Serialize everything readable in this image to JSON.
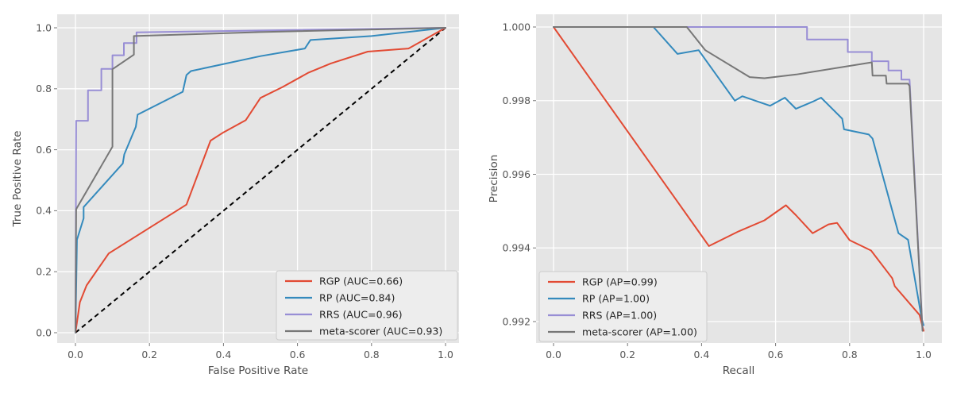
{
  "figure": {
    "background": "#ffffff"
  },
  "colors": {
    "plot_bg": "#e5e5e5",
    "grid": "#ffffff",
    "tick": "#777777",
    "tick_label": "#555555",
    "axis_label": "#4d4d4d",
    "legend_bg": "#ededed",
    "legend_border": "#cccccc",
    "legend_text": "#262626",
    "red": "#e24a33",
    "blue": "#348abd",
    "purple": "#988ed5",
    "gray": "#777777",
    "diagonal": "#000000"
  },
  "chart_data": [
    {
      "id": "roc",
      "type": "line",
      "xlabel": "False Positive Rate",
      "ylabel": "True Positive Rate",
      "xlim": [
        -0.05,
        1.05
      ],
      "ylim": [
        -0.04,
        1.04
      ],
      "xticks": [
        0.0,
        0.2,
        0.4,
        0.6,
        0.8,
        1.0
      ],
      "xtick_labels": [
        "0.0",
        "0.2",
        "0.4",
        "0.6",
        "0.8",
        "1.0"
      ],
      "yticks": [
        0.0,
        0.2,
        0.4,
        0.6,
        0.8,
        1.0
      ],
      "ytick_labels": [
        "0.0",
        "0.2",
        "0.4",
        "0.6",
        "0.8",
        "1.0"
      ],
      "grid": true,
      "legend_location": "lower right",
      "reference_diagonal": true,
      "series": [
        {
          "name": "RGP",
          "legend_label": "RGP (AUC=0.66)",
          "auc": 0.66,
          "color": "#e24a33",
          "points": [
            [
              0,
              0
            ],
            [
              0.012,
              0.1
            ],
            [
              0.03,
              0.155
            ],
            [
              0.09,
              0.26
            ],
            [
              0.3,
              0.42
            ],
            [
              0.365,
              0.63
            ],
            [
              0.4,
              0.657
            ],
            [
              0.46,
              0.697
            ],
            [
              0.5,
              0.77
            ],
            [
              0.56,
              0.806
            ],
            [
              0.63,
              0.853
            ],
            [
              0.69,
              0.883
            ],
            [
              0.79,
              0.922
            ],
            [
              0.9,
              0.932
            ],
            [
              1,
              1
            ]
          ]
        },
        {
          "name": "RP",
          "legend_label": "RP (AUC=0.84)",
          "auc": 0.84,
          "color": "#348abd",
          "points": [
            [
              0,
              0
            ],
            [
              0.004,
              0.305
            ],
            [
              0.022,
              0.375
            ],
            [
              0.022,
              0.412
            ],
            [
              0.128,
              0.555
            ],
            [
              0.132,
              0.585
            ],
            [
              0.163,
              0.675
            ],
            [
              0.168,
              0.715
            ],
            [
              0.29,
              0.79
            ],
            [
              0.3,
              0.845
            ],
            [
              0.312,
              0.858
            ],
            [
              0.5,
              0.907
            ],
            [
              0.62,
              0.932
            ],
            [
              0.635,
              0.96
            ],
            [
              0.8,
              0.973
            ],
            [
              1,
              1
            ]
          ]
        },
        {
          "name": "RRS",
          "legend_label": "RRS (AUC=0.96)",
          "auc": 0.96,
          "color": "#988ed5",
          "points": [
            [
              0,
              0
            ],
            [
              0.002,
              0.695
            ],
            [
              0.034,
              0.695
            ],
            [
              0.034,
              0.795
            ],
            [
              0.07,
              0.795
            ],
            [
              0.07,
              0.865
            ],
            [
              0.1,
              0.865
            ],
            [
              0.1,
              0.91
            ],
            [
              0.131,
              0.91
            ],
            [
              0.131,
              0.95
            ],
            [
              0.165,
              0.95
            ],
            [
              0.165,
              0.985
            ],
            [
              0.6,
              0.993
            ],
            [
              1,
              1
            ]
          ]
        },
        {
          "name": "meta-scorer",
          "legend_label": "meta-scorer (AUC=0.93)",
          "auc": 0.93,
          "color": "#777777",
          "points": [
            [
              0,
              0
            ],
            [
              0.002,
              0.405
            ],
            [
              0.1,
              0.61
            ],
            [
              0.1,
              0.864
            ],
            [
              0.158,
              0.912
            ],
            [
              0.158,
              0.973
            ],
            [
              0.5,
              0.986
            ],
            [
              1,
              1
            ]
          ]
        }
      ]
    },
    {
      "id": "pr",
      "type": "line",
      "xlabel": "Recall",
      "ylabel": "Precision",
      "xlim": [
        -0.05,
        1.05
      ],
      "ylim": [
        0.9914,
        1.0004
      ],
      "xticks": [
        0.0,
        0.2,
        0.4,
        0.6,
        0.8,
        1.0
      ],
      "xtick_labels": [
        "0.0",
        "0.2",
        "0.4",
        "0.6",
        "0.8",
        "1.0"
      ],
      "yticks": [
        0.992,
        0.994,
        0.996,
        0.998,
        1.0
      ],
      "ytick_labels": [
        "0.992",
        "0.994",
        "0.996",
        "0.998",
        "1.000"
      ],
      "grid": true,
      "legend_location": "lower left",
      "reference_diagonal": false,
      "series": [
        {
          "name": "RGP",
          "legend_label": "RGP (AP=0.99)",
          "ap": 0.99,
          "color": "#e24a33",
          "points": [
            [
              0,
              1.0
            ],
            [
              0.42,
              0.99405
            ],
            [
              0.5,
              0.99445
            ],
            [
              0.57,
              0.99475
            ],
            [
              0.628,
              0.99516
            ],
            [
              0.655,
              0.99489
            ],
            [
              0.7,
              0.9944
            ],
            [
              0.743,
              0.99464
            ],
            [
              0.766,
              0.99468
            ],
            [
              0.8,
              0.99421
            ],
            [
              0.858,
              0.99393
            ],
            [
              0.915,
              0.99318
            ],
            [
              0.922,
              0.99296
            ],
            [
              0.989,
              0.99218
            ],
            [
              1.0,
              0.99175
            ]
          ]
        },
        {
          "name": "RP",
          "legend_label": "RP (AP=1.00)",
          "ap": 1.0,
          "color": "#348abd",
          "points": [
            [
              0,
              1.0
            ],
            [
              0.27,
              1.0
            ],
            [
              0.335,
              0.99927
            ],
            [
              0.392,
              0.99937
            ],
            [
              0.49,
              0.998
            ],
            [
              0.51,
              0.99812
            ],
            [
              0.585,
              0.99786
            ],
            [
              0.625,
              0.99808
            ],
            [
              0.655,
              0.99778
            ],
            [
              0.7,
              0.99797
            ],
            [
              0.723,
              0.99808
            ],
            [
              0.78,
              0.99751
            ],
            [
              0.785,
              0.99722
            ],
            [
              0.852,
              0.99708
            ],
            [
              0.862,
              0.99697
            ],
            [
              0.932,
              0.9944
            ],
            [
              0.958,
              0.99422
            ],
            [
              0.995,
              0.99207
            ],
            [
              1.0,
              0.9919
            ]
          ]
        },
        {
          "name": "RRS",
          "legend_label": "RRS (AP=1.00)",
          "ap": 1.0,
          "color": "#988ed5",
          "points": [
            [
              0,
              1.0
            ],
            [
              0.685,
              1.0
            ],
            [
              0.685,
              0.99966
            ],
            [
              0.795,
              0.99966
            ],
            [
              0.795,
              0.99932
            ],
            [
              0.86,
              0.99932
            ],
            [
              0.86,
              0.99907
            ],
            [
              0.905,
              0.99907
            ],
            [
              0.905,
              0.99882
            ],
            [
              0.94,
              0.99882
            ],
            [
              0.94,
              0.99857
            ],
            [
              0.962,
              0.99857
            ],
            [
              0.997,
              0.9918
            ]
          ]
        },
        {
          "name": "meta-scorer",
          "legend_label": "meta-scorer (AP=1.00)",
          "ap": 1.0,
          "color": "#777777",
          "points": [
            [
              0,
              1.0
            ],
            [
              0.36,
              1.0
            ],
            [
              0.41,
              0.99937
            ],
            [
              0.53,
              0.99864
            ],
            [
              0.57,
              0.99861
            ],
            [
              0.656,
              0.99871
            ],
            [
              0.86,
              0.99904
            ],
            [
              0.862,
              0.99868
            ],
            [
              0.898,
              0.99868
            ],
            [
              0.9,
              0.99846
            ],
            [
              0.958,
              0.99846
            ],
            [
              0.962,
              0.9984
            ],
            [
              0.997,
              0.99175
            ]
          ]
        }
      ]
    }
  ]
}
